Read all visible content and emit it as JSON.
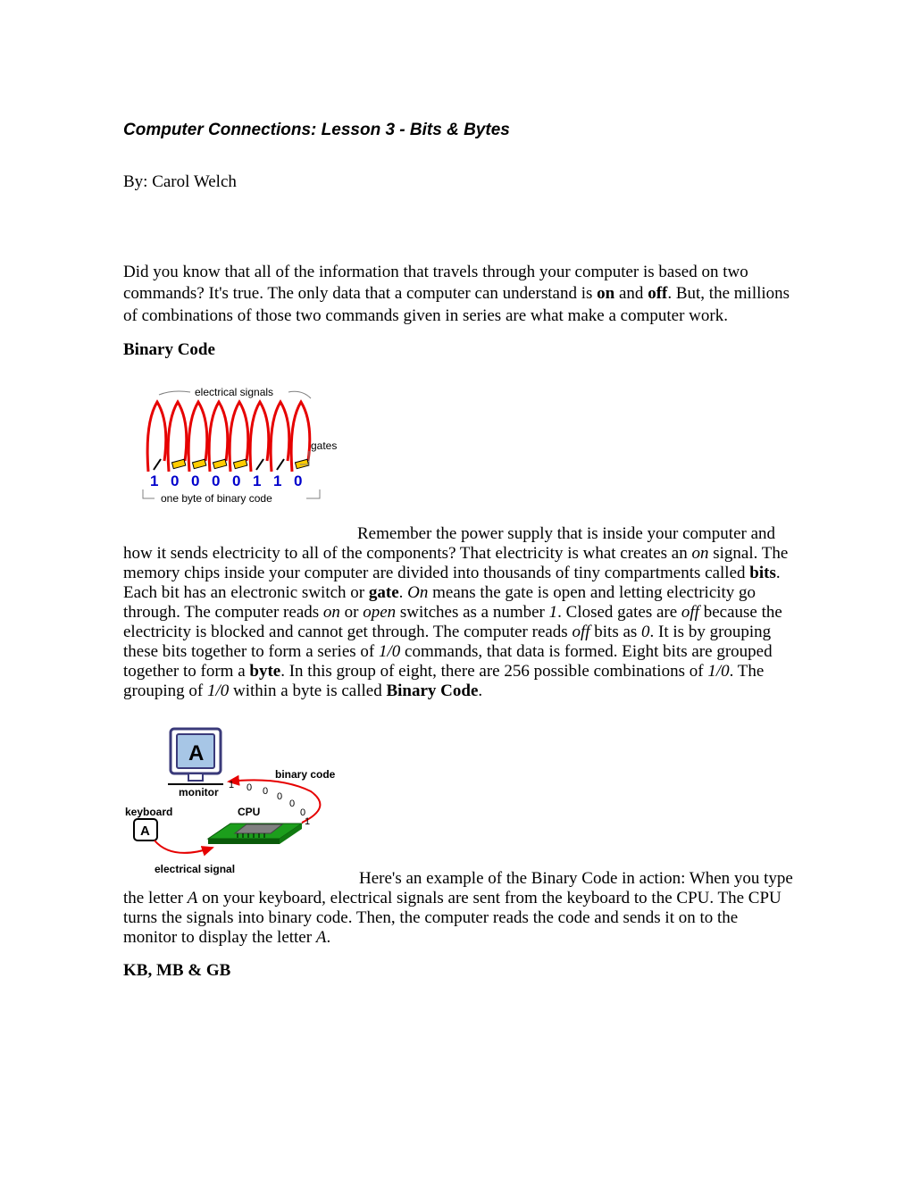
{
  "title": "Computer Connections: Lesson 3 - Bits & Bytes",
  "byline": "By: Carol Welch",
  "intro": {
    "t1": "Did you know that all of the information that travels through your computer is based on two commands? It's true. The only data that a computer can understand is ",
    "b1": "on",
    "t2": " and ",
    "b2": "off",
    "t3": ". But, the millions of combinations of those two commands given in series are what make a computer work."
  },
  "section_binary_head": "Binary Code",
  "diagram1": {
    "label_signals": "electrical signals",
    "label_gates": "gates",
    "label_byte": "one byte of binary code",
    "bits": [
      "1",
      "0",
      "0",
      "0",
      "0",
      "1",
      "1",
      "0"
    ],
    "colors": {
      "wire": "#e60000",
      "gate_fill": "#ffcc00",
      "gate_border": "#000000",
      "digit": "#0000cc",
      "bracket": "#808080"
    }
  },
  "binary_para": {
    "t1": "Remember the power supply that is inside your computer and how it sends electricity to all of the components? That electricity is what creates an ",
    "i1": "on",
    "t2": " signal. The memory chips inside your computer are divided into thousands of tiny compartments called ",
    "b1": "bits",
    "t3": ". Each bit has an electronic switch or ",
    "b2": "gate",
    "t4": ". ",
    "i2": "On",
    "t5": " means the gate is open and letting electricity go through. The computer reads ",
    "i3": "on",
    "t6": " or ",
    "i4": "open",
    "t7": " switches as a number ",
    "i5": "1",
    "t8": ". Closed gates are ",
    "i6": "off",
    "t9": " because the electricity is blocked and cannot get through. The computer reads ",
    "i7": "off",
    "t10": " bits as ",
    "i8": "0",
    "t11": ". It is by grouping these bits together to form a series of ",
    "i9": "1/0",
    "t12": " commands, that data is formed. Eight bits are grouped together to form a ",
    "b3": "byte",
    "t13": ". In this group of eight, there are 256 possible combinations of ",
    "i10": "1/0",
    "t14": ". The grouping of ",
    "i11": "1/0",
    "t15": " within a byte is called ",
    "b4": "Binary Code",
    "t16": "."
  },
  "diagram2": {
    "monitor_letter": "A",
    "label_monitor": "monitor",
    "label_keyboard": "keyboard",
    "keyboard_key": "A",
    "label_cpu": "CPU",
    "label_binary": "binary code",
    "label_signal": "electrical signal",
    "binary_digits": [
      "1",
      "0",
      "0",
      "0",
      "0",
      "0",
      "1"
    ],
    "colors": {
      "monitor_border": "#3a3a7a",
      "monitor_screen": "#a7c6e6",
      "cpu_board": "#1c9e1c",
      "cpu_chip": "#808080",
      "arrow": "#e60000"
    }
  },
  "example_para": {
    "t1": "Here's an example of the Binary Code in action: When you type the letter ",
    "i1": "A",
    "t2": " on your keyboard, electrical signals are sent from the keyboard to the CPU. The CPU turns the signals into binary code. Then, the computer reads the code and sends it on to the monitor to display the letter ",
    "i2": "A",
    "t3": "."
  },
  "section_kb_head": "KB, MB & GB"
}
